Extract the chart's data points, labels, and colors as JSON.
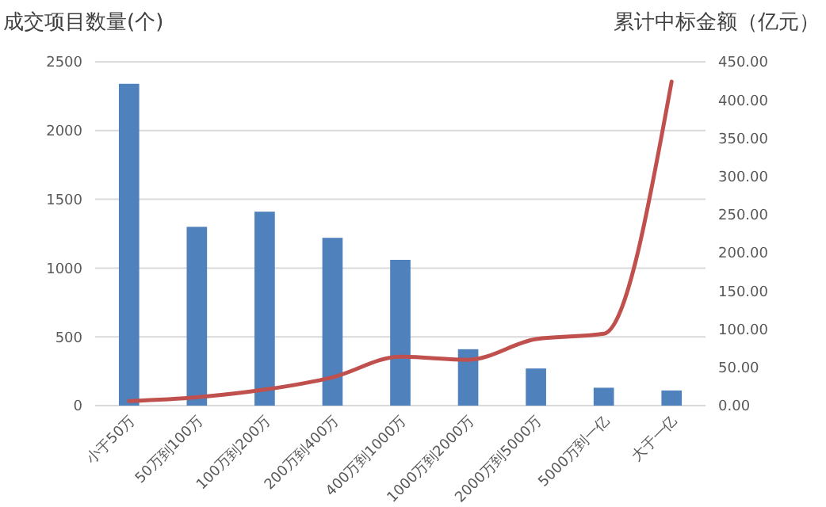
{
  "chart_data": {
    "type": "bar",
    "ylabel": "成交项目数量(个)",
    "y2label": "累计中标金额（亿元）",
    "categories": [
      "小于50万",
      "50万到100万",
      "100万到200万",
      "200万到400万",
      "400万到1000万",
      "1000万到2000万",
      "2000万到5000万",
      "5000万到一亿",
      "大于一亿"
    ],
    "series": [
      {
        "color": "#4f81bd",
        "values": [
          2340,
          1300,
          1410,
          1220,
          1060,
          410,
          270,
          130,
          110
        ]
      },
      {
        "type": "line",
        "axis": "y2",
        "color": "#c0504d",
        "values": [
          6,
          11,
          21,
          37,
          64,
          60,
          87,
          94,
          424
        ]
      }
    ],
    "ylim": [
      0,
      2500
    ],
    "yticks": [
      0,
      500,
      1000,
      1500,
      2000,
      2500
    ],
    "y2lim": [
      0,
      450
    ],
    "y2ticks": [
      {
        "value": 0,
        "label": "0.00"
      },
      {
        "value": 50,
        "label": "50.00"
      },
      {
        "value": 100,
        "label": "100.00"
      },
      {
        "value": 150,
        "label": "150.00"
      },
      {
        "value": 200,
        "label": "200.00"
      },
      {
        "value": 250,
        "label": "250.00"
      },
      {
        "value": 300,
        "label": "300.00"
      },
      {
        "value": 350,
        "label": "350.00"
      },
      {
        "value": 400,
        "label": "400.00"
      },
      {
        "value": 450,
        "label": "450.00"
      }
    ],
    "grid": "y"
  }
}
